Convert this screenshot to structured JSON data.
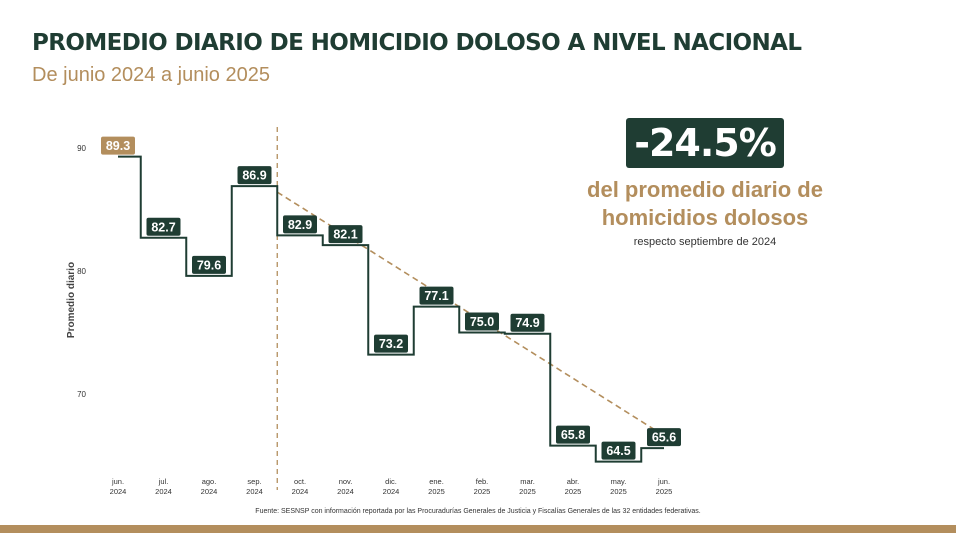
{
  "title": "PROMEDIO DIARIO DE HOMICIDIO DOLOSO A NIVEL NACIONAL",
  "subtitle": "De junio 2024 a junio 2025",
  "kpi": {
    "value": "-24.5%",
    "line1": "del promedio diario de",
    "line2": "homicidios dolosos",
    "note": "respecto septiembre de 2024"
  },
  "source": "Fuente: SESNSP con información reportada por las Procuradurías Generales de Justicia y Fiscalías Generales de las 32 entidades federativas.",
  "colors": {
    "line": "#1f3d33",
    "first_label": "#b38e5d",
    "trend": "#b38e5d",
    "accent": "#b38e5d"
  },
  "chart_data": {
    "type": "line",
    "step": true,
    "title": "PROMEDIO DIARIO DE HOMICIDIO DOLOSO A NIVEL NACIONAL",
    "subtitle": "De junio 2024 a junio 2025",
    "ylabel": "Promedio diario",
    "ylim": [
      63,
      92
    ],
    "yticks": [
      70,
      80,
      90
    ],
    "grid": false,
    "categories": [
      [
        "jun.",
        "2024"
      ],
      [
        "jul.",
        "2024"
      ],
      [
        "ago.",
        "2024"
      ],
      [
        "sep.",
        "2024"
      ],
      [
        "oct.",
        "2024"
      ],
      [
        "nov.",
        "2024"
      ],
      [
        "dic.",
        "2024"
      ],
      [
        "ene.",
        "2025"
      ],
      [
        "feb.",
        "2025"
      ],
      [
        "mar.",
        "2025"
      ],
      [
        "abr.",
        "2025"
      ],
      [
        "may.",
        "2025"
      ],
      [
        "jun.",
        "2025"
      ]
    ],
    "values": [
      89.3,
      82.7,
      79.6,
      86.9,
      82.9,
      82.1,
      73.2,
      77.1,
      75.0,
      74.9,
      65.8,
      64.5,
      65.6
    ],
    "labels": [
      "89.3",
      "82.7",
      "79.6",
      "86.9",
      "82.9",
      "82.1",
      "73.2",
      "77.1",
      "75.0",
      "74.9",
      "65.8",
      "64.5",
      "65.6"
    ],
    "reference_line": "sep. 2024",
    "trend_arrow": {
      "from": "sep. 2024",
      "to": "jun. 2025"
    }
  }
}
